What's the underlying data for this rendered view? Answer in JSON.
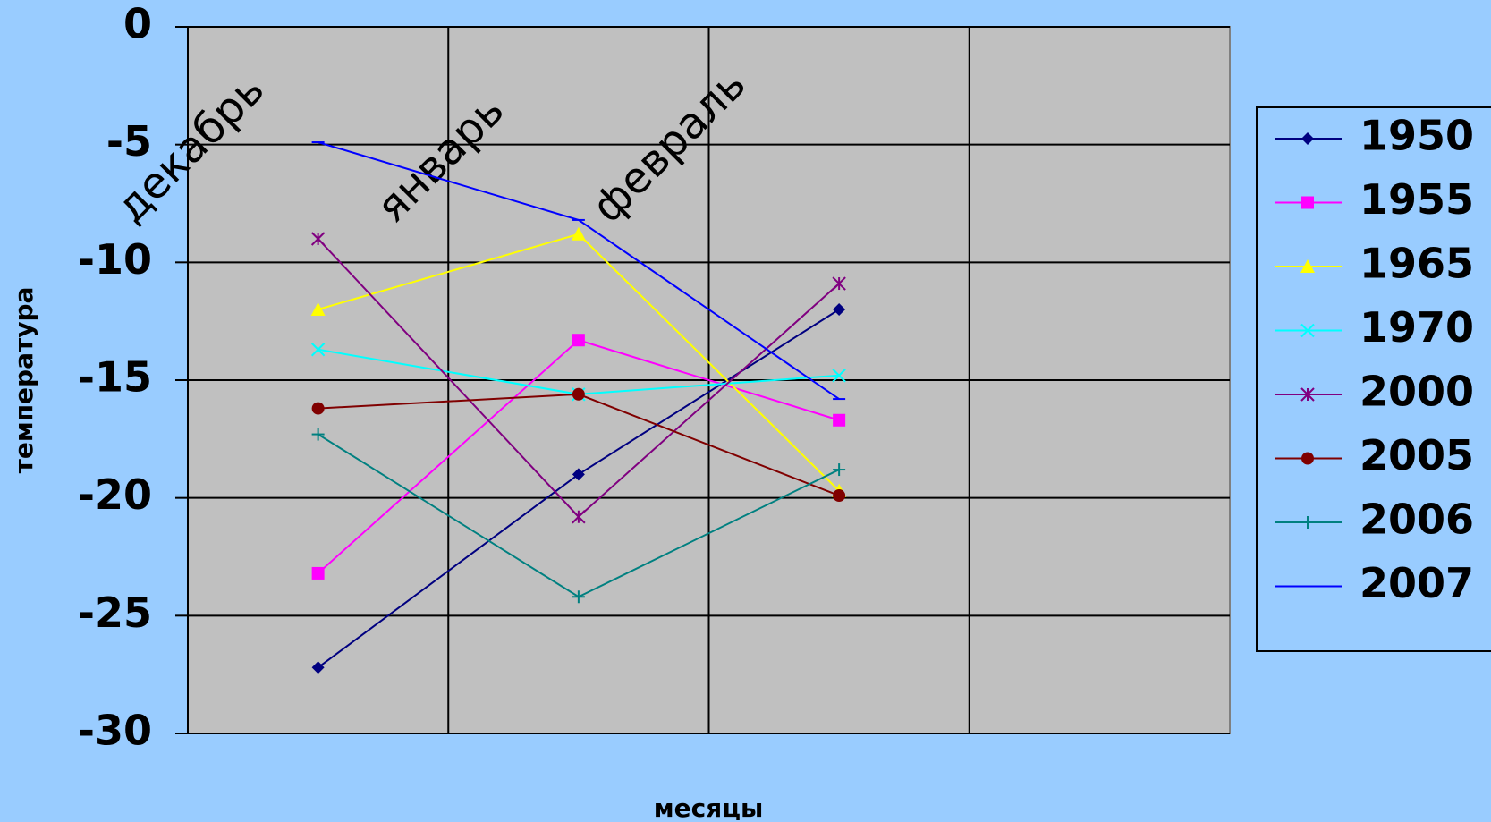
{
  "chart_data": {
    "type": "line",
    "y_label": "температура",
    "x_label": "месяцы",
    "categories": [
      "декабрь",
      "январь",
      "февраль",
      null
    ],
    "ylim": [
      -30,
      0
    ],
    "yticks": [
      0,
      -5,
      -10,
      -15,
      -20,
      -25,
      -30
    ],
    "grid": true,
    "legend": "right",
    "series": [
      {
        "name": "1950",
        "color": "#000080",
        "marker": "diamond",
        "values": [
          -27.2,
          -19,
          -12,
          null
        ]
      },
      {
        "name": "1955",
        "color": "#ff00ff",
        "marker": "square",
        "values": [
          -23.2,
          -13.3,
          -16.7,
          null
        ]
      },
      {
        "name": "1965",
        "color": "#ffff00",
        "marker": "triangle",
        "values": [
          -12,
          -8.8,
          -19.7,
          null
        ]
      },
      {
        "name": "1970",
        "color": "#00ffff",
        "marker": "x",
        "values": [
          -13.7,
          -15.6,
          -14.8,
          null
        ]
      },
      {
        "name": "2000",
        "color": "#800080",
        "marker": "star",
        "values": [
          -9,
          -20.8,
          -10.9,
          null
        ]
      },
      {
        "name": "2005",
        "color": "#800000",
        "marker": "circle",
        "values": [
          -16.2,
          -15.6,
          -19.9,
          null
        ]
      },
      {
        "name": "2006",
        "color": "#008080",
        "marker": "plus",
        "values": [
          -17.3,
          -24.2,
          -18.8,
          null
        ]
      },
      {
        "name": "2007",
        "color": "#0000ff",
        "marker": "dash",
        "values": [
          -4.9,
          -8.2,
          -15.8,
          null
        ]
      }
    ]
  }
}
